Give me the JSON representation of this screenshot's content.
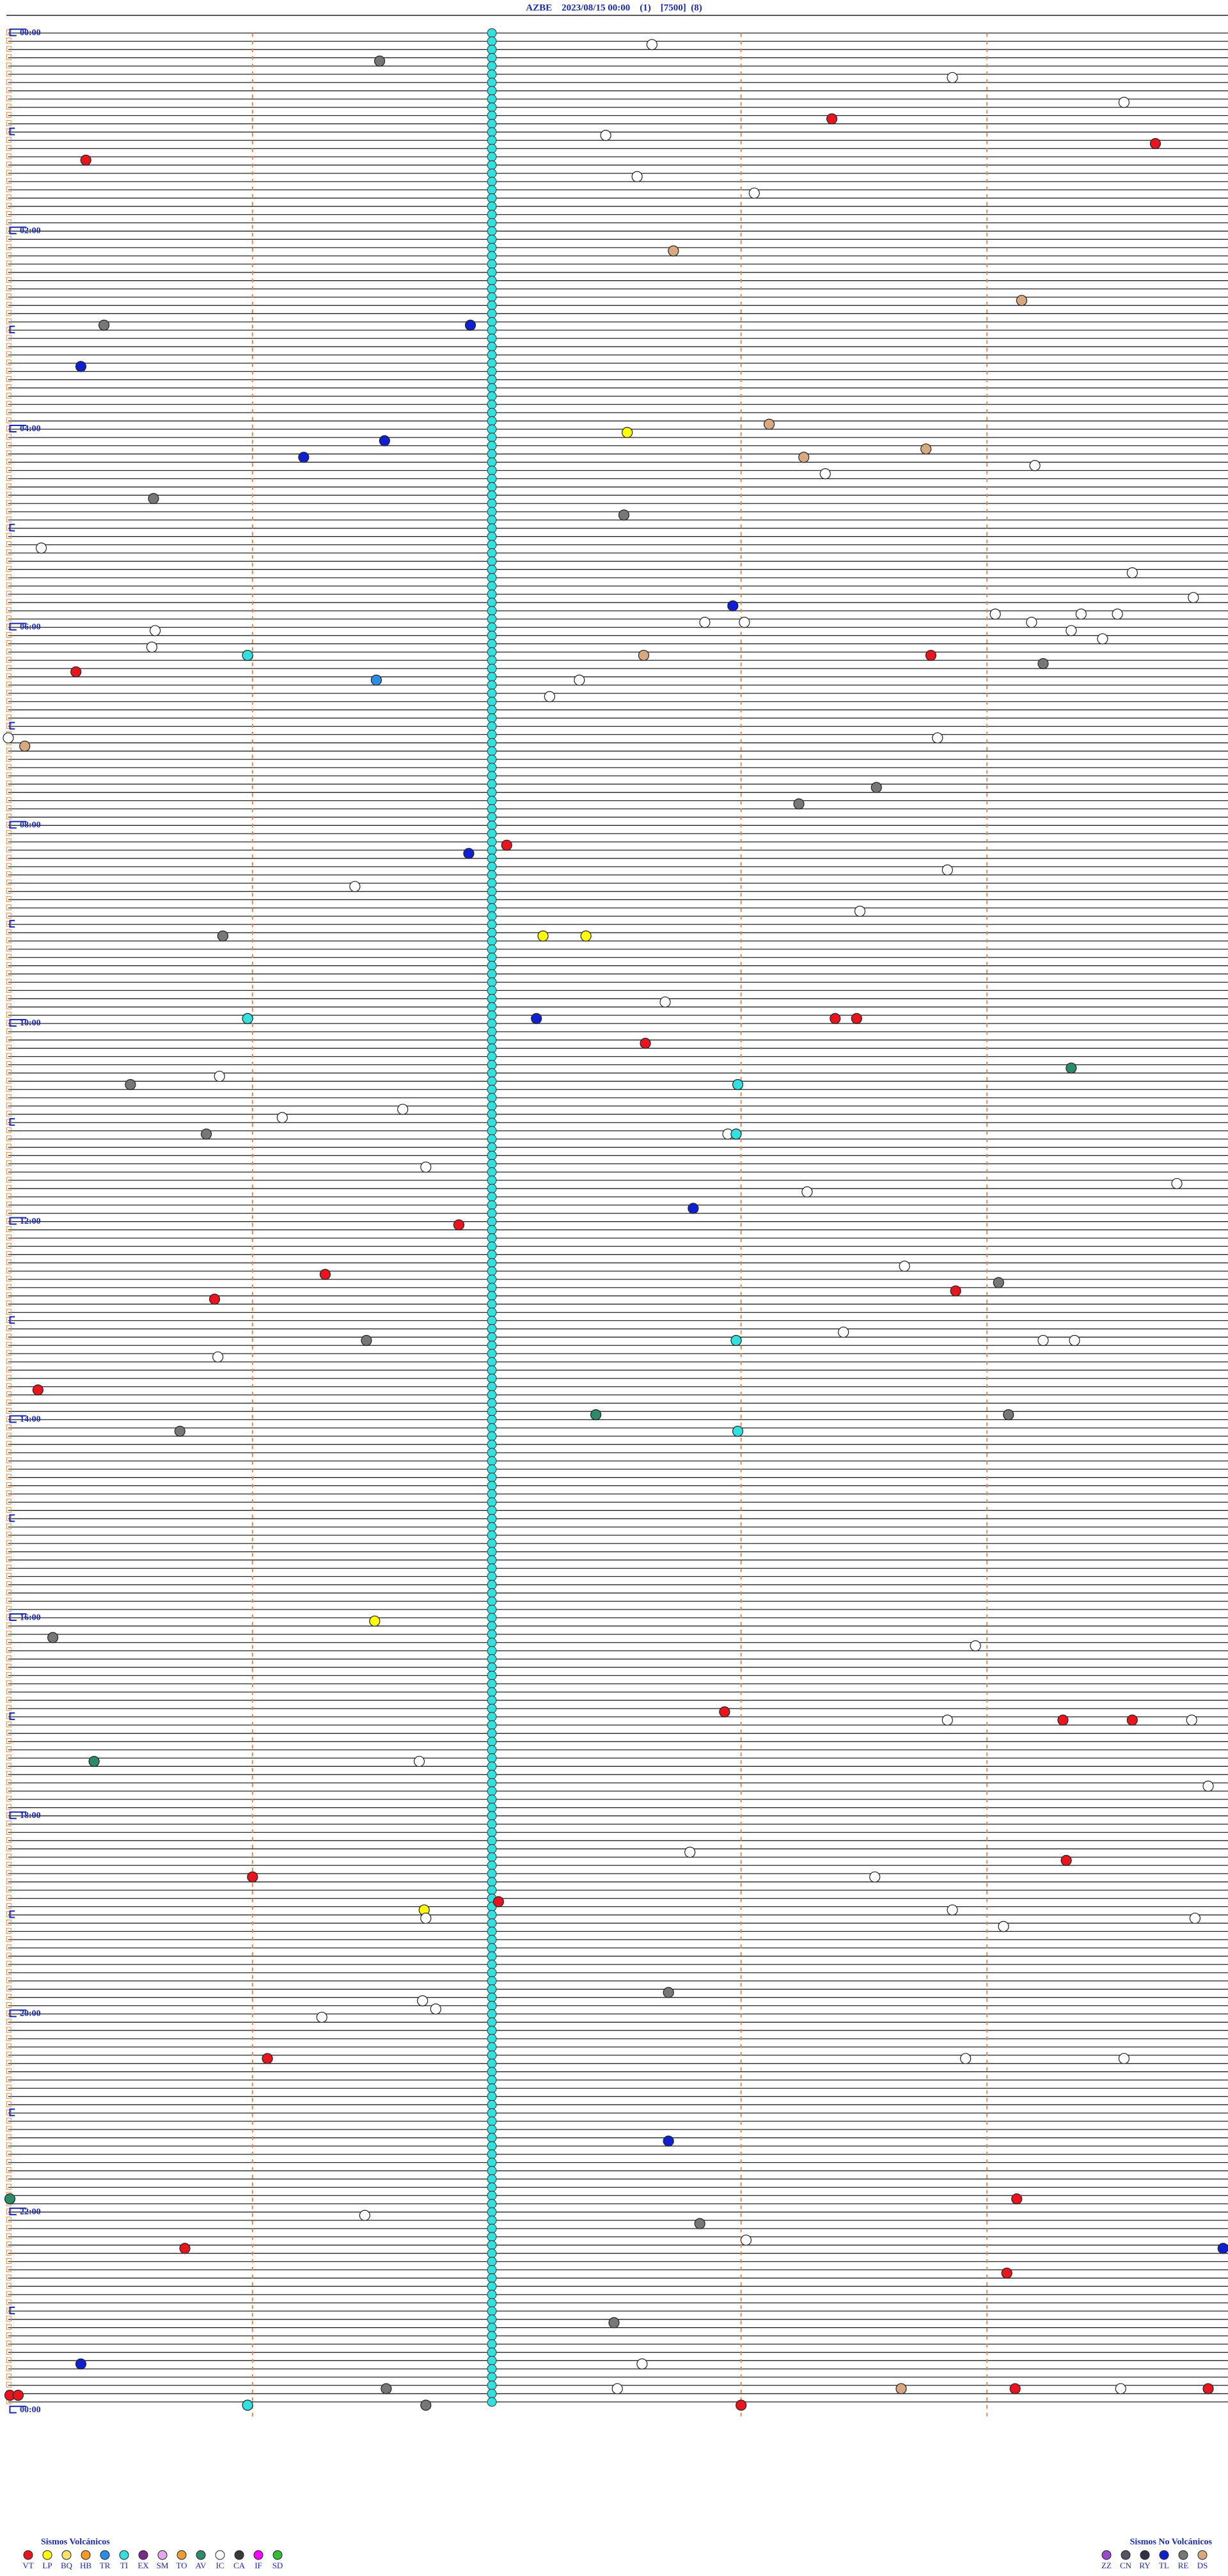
{
  "header": {
    "title": "AZBE    2023/08/15 00:00    (1)    [7500]  (8)"
  },
  "hour_labels": [
    "00:00",
    "02:00",
    "04:00",
    "06:00",
    "08:00",
    "10:00",
    "12:00",
    "14:00",
    "16:00",
    "18:00",
    "20:00",
    "22:00",
    "00:00"
  ],
  "legend": [
    {
      "title": "Sismos Volcánicos",
      "items": [
        {
          "label": "VT",
          "color": "#e8141e"
        },
        {
          "label": "LP",
          "color": "#ffff00"
        },
        {
          "label": "BQ",
          "color": "#f5e36b"
        },
        {
          "label": "HB",
          "color": "#f79a2a"
        },
        {
          "label": "TR",
          "color": "#2c8de8"
        },
        {
          "label": "TI",
          "color": "#33e0e0"
        },
        {
          "label": "EX",
          "color": "#7a2a8a"
        },
        {
          "label": "SM",
          "color": "#e4a8e8"
        },
        {
          "label": "TO",
          "color": "#e8a030"
        },
        {
          "label": "AV",
          "color": "#2e8b6a"
        },
        {
          "label": "IC",
          "color": "#ffffff"
        },
        {
          "label": "CA",
          "color": "#3a3a3a"
        },
        {
          "label": "IF",
          "color": "#ff00ff"
        },
        {
          "label": "SD",
          "color": "#33bb33"
        }
      ]
    },
    {
      "title": "Sismos No Volcánicos",
      "items": [
        {
          "label": "ZZ",
          "color": "#9a4acc"
        },
        {
          "label": "CN",
          "color": "#555566"
        },
        {
          "label": "RY",
          "color": "#333344"
        },
        {
          "label": "TL",
          "color": "#1020d0"
        },
        {
          "label": "RE",
          "color": "#777777"
        },
        {
          "label": "DS",
          "color": "#d8a880"
        }
      ]
    }
  ]
}
